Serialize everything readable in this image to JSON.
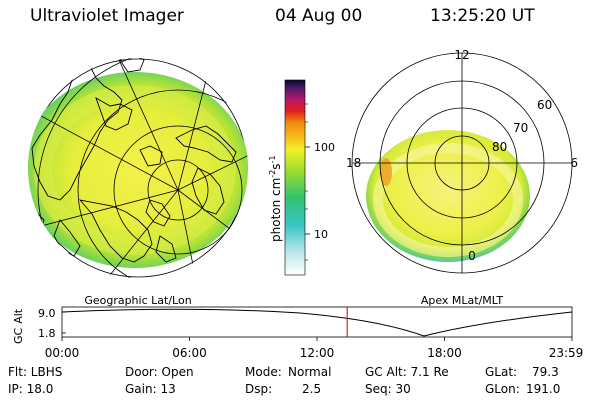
{
  "header": {
    "instrument": "Ultraviolet Imager",
    "date": "04 Aug 00",
    "time": "13:25:20 UT"
  },
  "colorbar": {
    "unit_label": "photon cm",
    "unit_exp1": "-2",
    "unit_s": "s",
    "unit_exp2": "-1",
    "ticks": [
      "100",
      "10"
    ]
  },
  "geo_map": {
    "caption": "Geographic Lat/Lon"
  },
  "polar_map": {
    "caption": "Apex MLat/MLT",
    "mlt_labels": {
      "top": "12",
      "left": "18",
      "right": "6",
      "bottom": "0"
    },
    "lat_labels": [
      "60",
      "70",
      "80"
    ]
  },
  "orbit_plot": {
    "ylabel_top": "GC",
    "ylabel_bottom": "Alt",
    "ytick_top": "9.0",
    "ytick_bottom": "1.8",
    "xticks": [
      "00:00",
      "06:00",
      "12:00",
      "18:00",
      "23:59"
    ],
    "current_time_hours": 13.42,
    "line_color": "#cc0000"
  },
  "info": {
    "row1": {
      "filter": "Flt: LBHS",
      "door": "Door: Open",
      "mode_label": "Mode:",
      "mode_value": "Normal",
      "gc_alt": "GC Alt: 7.1 Re",
      "glat_label": "GLat:",
      "glat_value": "79.3"
    },
    "row2": {
      "ip": "IP: 18.0",
      "gain": "Gain: 13",
      "dsp_label": "Dsp:",
      "dsp_value": "2.5",
      "seq": "Seq: 30",
      "glon_label": "GLon:",
      "glon_value": "191.0"
    }
  }
}
